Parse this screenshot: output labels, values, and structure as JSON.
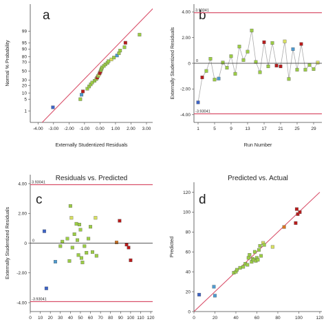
{
  "colors": {
    "ref_line": "#d9506a",
    "axis": "#444444",
    "connector": "#aaaaaa",
    "blue": "#3d63c6",
    "teal": "#4e9bd0",
    "green": "#9ccd45",
    "yellow": "#d8e060",
    "orange": "#d7751f",
    "red": "#b81c1c"
  },
  "chart_data": [
    {
      "id": "a",
      "panel_label": "a",
      "type": "scatter",
      "title": "",
      "xlabel": "Externally Studentized Residuals",
      "ylabel": "Normal % Probability",
      "xlim": [
        -4.5,
        3.4
      ],
      "x_ticks": [
        -4,
        -3,
        -2,
        -1,
        0,
        1,
        2,
        3
      ],
      "x_tick_labels": [
        "-4.00",
        "-3.00",
        "-2.00",
        "-1.00",
        "0.00",
        "1.00",
        "2.00",
        "3.00"
      ],
      "y_scale": "normal-probability",
      "y_ticks": [
        1,
        5,
        10,
        20,
        30,
        50,
        70,
        80,
        90,
        95,
        99
      ],
      "y_tick_labels": [
        "1",
        "5",
        "10",
        "20",
        "30",
        "50",
        "70",
        "80",
        "90",
        "95",
        "99"
      ],
      "reference_line": [
        [
          -4.6,
          0.007
        ],
        [
          3.5,
          99.99
        ]
      ],
      "points": [
        {
          "x": -3.04,
          "y": 1.7,
          "c": "blue"
        },
        {
          "x": -1.27,
          "y": 5.0,
          "c": "green"
        },
        {
          "x": -1.19,
          "y": 8.3,
          "c": "teal"
        },
        {
          "x": -1.1,
          "y": 11.7,
          "c": "red"
        },
        {
          "x": -0.82,
          "y": 15.0,
          "c": "green"
        },
        {
          "x": -0.7,
          "y": 18.3,
          "c": "green"
        },
        {
          "x": -0.6,
          "y": 21.7,
          "c": "green"
        },
        {
          "x": -0.5,
          "y": 25.0,
          "c": "green"
        },
        {
          "x": -0.35,
          "y": 28.3,
          "c": "green"
        },
        {
          "x": -0.24,
          "y": 31.7,
          "c": "green"
        },
        {
          "x": -0.18,
          "y": 35.0,
          "c": "red"
        },
        {
          "x": -0.13,
          "y": 38.3,
          "c": "green"
        },
        {
          "x": -0.06,
          "y": 41.7,
          "c": "yellow"
        },
        {
          "x": -0.02,
          "y": 45.0,
          "c": "red"
        },
        {
          "x": 0.03,
          "y": 48.3,
          "c": "red"
        },
        {
          "x": 0.06,
          "y": 51.7,
          "c": "green"
        },
        {
          "x": 0.1,
          "y": 55.0,
          "c": "green"
        },
        {
          "x": 0.14,
          "y": 58.3,
          "c": "green"
        },
        {
          "x": 0.25,
          "y": 61.7,
          "c": "green"
        },
        {
          "x": 0.35,
          "y": 65.0,
          "c": "green"
        },
        {
          "x": 0.48,
          "y": 68.3,
          "c": "green"
        },
        {
          "x": 0.55,
          "y": 71.7,
          "c": "green"
        },
        {
          "x": 0.74,
          "y": 75.0,
          "c": "yellow"
        },
        {
          "x": 0.9,
          "y": 78.3,
          "c": "green"
        },
        {
          "x": 1.1,
          "y": 81.7,
          "c": "teal"
        },
        {
          "x": 1.22,
          "y": 85.0,
          "c": "green"
        },
        {
          "x": 1.3,
          "y": 88.3,
          "c": "green"
        },
        {
          "x": 1.58,
          "y": 91.7,
          "c": "green"
        },
        {
          "x": 1.64,
          "y": 95.0,
          "c": "red"
        },
        {
          "x": 2.55,
          "y": 98.3,
          "c": "green"
        }
      ]
    },
    {
      "id": "b",
      "panel_label": "b",
      "type": "line",
      "title": "",
      "xlabel": "Run Number",
      "ylabel": "Externally Studentized Residuals",
      "xlim": [
        0,
        31
      ],
      "ylim": [
        -4.6,
        4.6
      ],
      "x_ticks": [
        1,
        5,
        9,
        13,
        17,
        21,
        25,
        29
      ],
      "x_tick_labels": [
        "1",
        "5",
        "9",
        "13",
        "17",
        "21",
        "25",
        "29"
      ],
      "y_ticks": [
        -4,
        -2,
        0,
        2,
        4
      ],
      "y_tick_labels": [
        "-4.00",
        "-2.00",
        "0",
        "2.00",
        "4.00"
      ],
      "limit_value": 3.93041,
      "limit_labels": [
        "3.93041",
        "-3.93041"
      ],
      "zero_label": "0",
      "points": [
        {
          "x": 1,
          "y": -3.04,
          "c": "blue"
        },
        {
          "x": 2,
          "y": -1.1,
          "c": "red"
        },
        {
          "x": 3,
          "y": -0.6,
          "c": "green"
        },
        {
          "x": 4,
          "y": 0.35,
          "c": "green"
        },
        {
          "x": 5,
          "y": -1.27,
          "c": "green"
        },
        {
          "x": 6,
          "y": -1.19,
          "c": "teal"
        },
        {
          "x": 7,
          "y": 0.06,
          "c": "green"
        },
        {
          "x": 8,
          "y": -0.35,
          "c": "green"
        },
        {
          "x": 9,
          "y": 0.55,
          "c": "green"
        },
        {
          "x": 10,
          "y": -0.82,
          "c": "green"
        },
        {
          "x": 11,
          "y": 1.3,
          "c": "green"
        },
        {
          "x": 12,
          "y": 0.25,
          "c": "green"
        },
        {
          "x": 13,
          "y": 0.9,
          "c": "green"
        },
        {
          "x": 14,
          "y": 2.55,
          "c": "green"
        },
        {
          "x": 15,
          "y": 0.1,
          "c": "green"
        },
        {
          "x": 16,
          "y": -0.7,
          "c": "green"
        },
        {
          "x": 17,
          "y": 1.64,
          "c": "red"
        },
        {
          "x": 18,
          "y": -0.24,
          "c": "green"
        },
        {
          "x": 19,
          "y": 1.58,
          "c": "green"
        },
        {
          "x": 20,
          "y": -0.18,
          "c": "red"
        },
        {
          "x": 21,
          "y": -0.24,
          "c": "red"
        },
        {
          "x": 22,
          "y": 1.7,
          "c": "yellow"
        },
        {
          "x": 23,
          "y": -1.22,
          "c": "green"
        },
        {
          "x": 24,
          "y": 1.1,
          "c": "teal"
        },
        {
          "x": 25,
          "y": -0.5,
          "c": "green"
        },
        {
          "x": 26,
          "y": 1.5,
          "c": "red"
        },
        {
          "x": 27,
          "y": -0.5,
          "c": "green"
        },
        {
          "x": 28,
          "y": -0.13,
          "c": "green"
        },
        {
          "x": 29,
          "y": -0.45,
          "c": "green"
        },
        {
          "x": 30,
          "y": 0.05,
          "c": "yellow"
        }
      ]
    },
    {
      "id": "c",
      "panel_label": "c",
      "type": "scatter",
      "title": "Residuals vs. Predicted",
      "xlabel": "",
      "ylabel": "Externally Studentized Residuals",
      "xlim": [
        0,
        122
      ],
      "ylim": [
        -4.6,
        4.6
      ],
      "x_ticks": [
        0,
        10,
        20,
        30,
        40,
        50,
        60,
        70,
        80,
        90,
        100,
        110,
        120
      ],
      "x_tick_labels": [
        "0",
        "10",
        "20",
        "30",
        "40",
        "50",
        "60",
        "70",
        "80",
        "90",
        "100",
        "110",
        "120"
      ],
      "y_ticks": [
        -4,
        -2,
        0,
        2,
        4
      ],
      "y_tick_labels": [
        "-4.00",
        "-2.00",
        "0",
        "2.00",
        "4.00"
      ],
      "limit_value": 3.93041,
      "limit_labels": [
        "3.93041",
        "-3.93041"
      ],
      "zero_label": "0",
      "points": [
        {
          "x": 14,
          "y": 0.8,
          "c": "blue"
        },
        {
          "x": 16,
          "y": -3.04,
          "c": "blue"
        },
        {
          "x": 25,
          "y": -1.25,
          "c": "teal"
        },
        {
          "x": 30,
          "y": -0.2,
          "c": "green"
        },
        {
          "x": 32,
          "y": 0.1,
          "c": "green"
        },
        {
          "x": 37,
          "y": 0.3,
          "c": "green"
        },
        {
          "x": 39,
          "y": -1.2,
          "c": "green"
        },
        {
          "x": 40,
          "y": 2.5,
          "c": "green"
        },
        {
          "x": 41,
          "y": 1.7,
          "c": "yellow"
        },
        {
          "x": 42,
          "y": -0.3,
          "c": "green"
        },
        {
          "x": 44,
          "y": 0.6,
          "c": "green"
        },
        {
          "x": 46,
          "y": 1.3,
          "c": "green"
        },
        {
          "x": 47,
          "y": 0.2,
          "c": "green"
        },
        {
          "x": 48,
          "y": -0.8,
          "c": "green"
        },
        {
          "x": 49,
          "y": 1.25,
          "c": "green"
        },
        {
          "x": 50,
          "y": 0.9,
          "c": "green"
        },
        {
          "x": 51,
          "y": -1.0,
          "c": "green"
        },
        {
          "x": 52,
          "y": -1.3,
          "c": "green"
        },
        {
          "x": 54,
          "y": -0.2,
          "c": "green"
        },
        {
          "x": 56,
          "y": -0.65,
          "c": "green"
        },
        {
          "x": 58,
          "y": 0.3,
          "c": "green"
        },
        {
          "x": 60,
          "y": 1.1,
          "c": "green"
        },
        {
          "x": 62,
          "y": -0.6,
          "c": "green"
        },
        {
          "x": 65,
          "y": 1.7,
          "c": "yellow"
        },
        {
          "x": 66,
          "y": -0.85,
          "c": "green"
        },
        {
          "x": 86,
          "y": 0.05,
          "c": "orange"
        },
        {
          "x": 89,
          "y": 1.5,
          "c": "red"
        },
        {
          "x": 96,
          "y": -0.1,
          "c": "red"
        },
        {
          "x": 98,
          "y": -0.3,
          "c": "red"
        },
        {
          "x": 100,
          "y": -1.15,
          "c": "red"
        }
      ]
    },
    {
      "id": "d",
      "panel_label": "d",
      "type": "scatter",
      "title": "Predicted vs. Actual",
      "xlabel": "",
      "ylabel": "Predicted",
      "xlim": [
        0,
        122
      ],
      "ylim": [
        0,
        130
      ],
      "x_ticks": [
        0,
        20,
        40,
        60,
        80,
        100,
        120
      ],
      "x_tick_labels": [
        "0",
        "20",
        "40",
        "60",
        "80",
        "100",
        "120"
      ],
      "y_ticks": [
        0,
        20,
        40,
        60,
        80,
        100,
        120
      ],
      "y_tick_labels": [
        "0",
        "20",
        "40",
        "60",
        "80",
        "100",
        "120"
      ],
      "reference_line": [
        [
          0,
          0
        ],
        [
          120,
          120
        ]
      ],
      "points": [
        {
          "x": 5,
          "y": 17,
          "c": "blue"
        },
        {
          "x": 19,
          "y": 25,
          "c": "teal"
        },
        {
          "x": 20,
          "y": 16,
          "c": "teal"
        },
        {
          "x": 38,
          "y": 39,
          "c": "green"
        },
        {
          "x": 40,
          "y": 40,
          "c": "green"
        },
        {
          "x": 41,
          "y": 42,
          "c": "green"
        },
        {
          "x": 44,
          "y": 44,
          "c": "green"
        },
        {
          "x": 47,
          "y": 45,
          "c": "green"
        },
        {
          "x": 49,
          "y": 48,
          "c": "green"
        },
        {
          "x": 51,
          "y": 47,
          "c": "green"
        },
        {
          "x": 52,
          "y": 54,
          "c": "green"
        },
        {
          "x": 53,
          "y": 57,
          "c": "green"
        },
        {
          "x": 55,
          "y": 50,
          "c": "green"
        },
        {
          "x": 56,
          "y": 53,
          "c": "green"
        },
        {
          "x": 57,
          "y": 52,
          "c": "green"
        },
        {
          "x": 58,
          "y": 60,
          "c": "green"
        },
        {
          "x": 59,
          "y": 51,
          "c": "green"
        },
        {
          "x": 60,
          "y": 54,
          "c": "green"
        },
        {
          "x": 61,
          "y": 52,
          "c": "green"
        },
        {
          "x": 62,
          "y": 62,
          "c": "green"
        },
        {
          "x": 63,
          "y": 66,
          "c": "green"
        },
        {
          "x": 64,
          "y": 56,
          "c": "green"
        },
        {
          "x": 66,
          "y": 69,
          "c": "yellow"
        },
        {
          "x": 67,
          "y": 67,
          "c": "green"
        },
        {
          "x": 75,
          "y": 65,
          "c": "yellow"
        },
        {
          "x": 86,
          "y": 85,
          "c": "orange"
        },
        {
          "x": 97,
          "y": 89,
          "c": "red"
        },
        {
          "x": 98,
          "y": 103,
          "c": "red"
        },
        {
          "x": 99,
          "y": 98,
          "c": "red"
        },
        {
          "x": 101,
          "y": 100,
          "c": "red"
        }
      ]
    }
  ]
}
